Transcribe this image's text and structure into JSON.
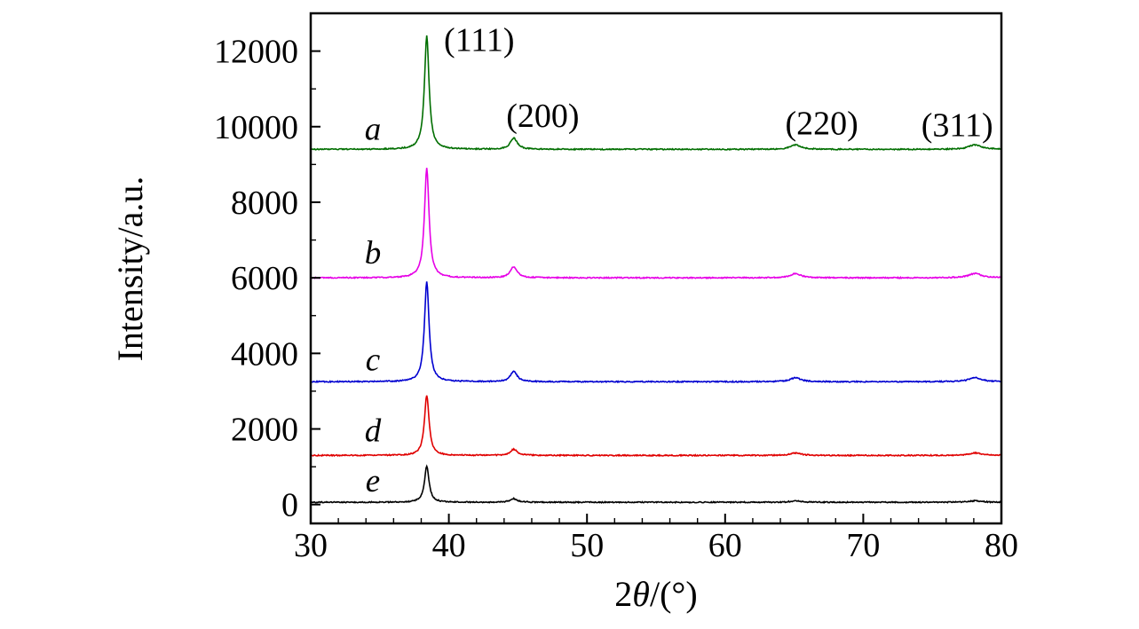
{
  "chart_data": {
    "type": "line",
    "title": "",
    "xlabel": "2θ/(°)",
    "xlabel_prefix": "2",
    "xlabel_symbol": "θ",
    "xlabel_suffix": "/(°)",
    "ylabel": "Intensity/a.u.",
    "xlim": [
      30,
      80
    ],
    "ylim": [
      -500,
      13000
    ],
    "grid": false,
    "x_major_ticks": [
      30,
      40,
      50,
      60,
      70,
      80
    ],
    "x_minor_step": 2,
    "y_major_ticks": [
      0,
      2000,
      4000,
      6000,
      8000,
      10000,
      12000
    ],
    "y_minor_step": 1000,
    "axis_color": "#000000",
    "noise_amplitude": 15,
    "sample_step": 0.05,
    "peaks": [
      {
        "hkl": "(111)",
        "two_theta": 38.4,
        "rel_intensity": 1.0,
        "hwhm": 0.2
      },
      {
        "hkl": "(200)",
        "two_theta": 44.7,
        "rel_intensity": 0.1,
        "hwhm": 0.3
      },
      {
        "hkl": "(220)",
        "two_theta": 65.1,
        "rel_intensity": 0.04,
        "hwhm": 0.45
      },
      {
        "hkl": "(311)",
        "two_theta": 78.1,
        "rel_intensity": 0.04,
        "hwhm": 0.55
      }
    ],
    "annotations": [
      {
        "text": "(111)",
        "x": 42.2,
        "y": 12000
      },
      {
        "text": "(200)",
        "x": 46.8,
        "y": 10000
      },
      {
        "text": "(220)",
        "x": 67.0,
        "y": 9800
      },
      {
        "text": "(311)",
        "x": 76.8,
        "y": 9750
      }
    ],
    "series": [
      {
        "name": "a",
        "color": "#006e00",
        "baseline": 9400,
        "main_peak_height": 3000,
        "label_x": 34.5,
        "label_y": 9650
      },
      {
        "name": "b",
        "color": "#e600e6",
        "baseline": 6000,
        "main_peak_height": 2900,
        "label_x": 34.5,
        "label_y": 6380
      },
      {
        "name": "c",
        "color": "#0000d0",
        "baseline": 3250,
        "main_peak_height": 2650,
        "label_x": 34.5,
        "label_y": 3550
      },
      {
        "name": "d",
        "color": "#e00000",
        "baseline": 1300,
        "main_peak_height": 1600,
        "label_x": 34.5,
        "label_y": 1670
      },
      {
        "name": "e",
        "color": "#000000",
        "baseline": 60,
        "main_peak_height": 950,
        "label_x": 34.5,
        "label_y": 350
      }
    ]
  }
}
